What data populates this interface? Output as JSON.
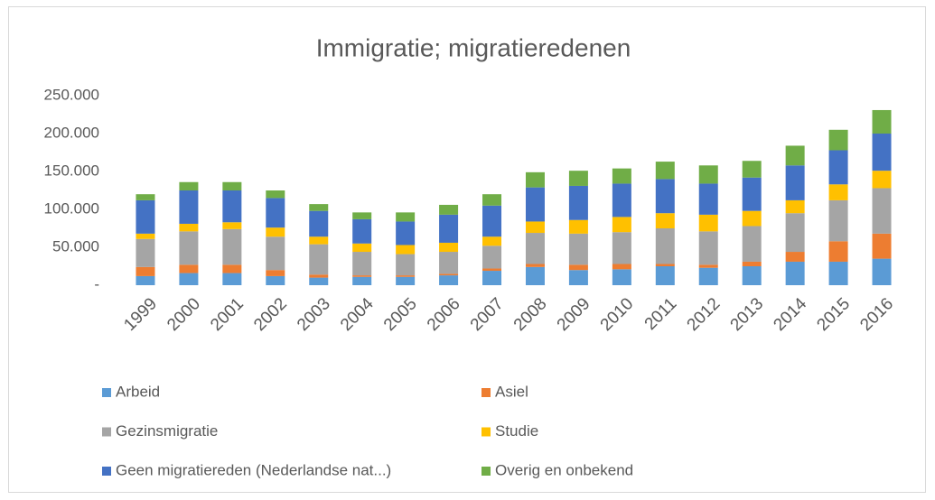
{
  "chart_data": {
    "type": "stacked_bar",
    "title": "Immigratie; migratieredenen",
    "categories": [
      "1999",
      "2000",
      "2001",
      "2002",
      "2003",
      "2004",
      "2005",
      "2006",
      "2007",
      "2008",
      "2009",
      "2010",
      "2011",
      "2012",
      "2013",
      "2014",
      "2015",
      "2016"
    ],
    "series": [
      {
        "name": "Arbeid",
        "color": "#5b9bd5",
        "values": [
          12000,
          16000,
          16000,
          12000,
          10000,
          11000,
          11000,
          13000,
          19000,
          24000,
          20000,
          21000,
          25000,
          23000,
          25000,
          31000,
          31000,
          35000
        ]
      },
      {
        "name": "Asiel",
        "color": "#ed7d31",
        "values": [
          12000,
          11000,
          11000,
          8000,
          4000,
          2000,
          2000,
          2000,
          3000,
          4000,
          7000,
          7000,
          3000,
          4000,
          6000,
          13000,
          27000,
          33000
        ]
      },
      {
        "name": "Gezinsmigratie",
        "color": "#a5a5a5",
        "values": [
          37000,
          44000,
          47000,
          44000,
          40000,
          31000,
          28000,
          29000,
          30000,
          41000,
          41000,
          42000,
          47000,
          44000,
          47000,
          51000,
          54000,
          60000
        ]
      },
      {
        "name": "Studie",
        "color": "#ffc000",
        "values": [
          7000,
          10000,
          9000,
          12000,
          10000,
          11000,
          12000,
          12000,
          12000,
          15000,
          18000,
          20000,
          20000,
          22000,
          20000,
          17000,
          21000,
          23000
        ]
      },
      {
        "name": "Geen migratiereden (Nederlandse nat...)",
        "color": "#4472c4",
        "values": [
          44000,
          44000,
          42000,
          39000,
          34000,
          32000,
          31000,
          37000,
          41000,
          45000,
          45000,
          44000,
          45000,
          41000,
          44000,
          46000,
          45000,
          49000
        ]
      },
      {
        "name": "Overig en onbekend",
        "color": "#70ad47",
        "values": [
          8000,
          11000,
          11000,
          10000,
          9000,
          9000,
          12000,
          13000,
          15000,
          20000,
          20000,
          20000,
          23000,
          24000,
          22000,
          26000,
          27000,
          31000
        ]
      }
    ],
    "ylim": [
      0,
      250000
    ],
    "yticks": [
      {
        "value": 0,
        "label": "-"
      },
      {
        "value": 50000,
        "label": "50.000"
      },
      {
        "value": 100000,
        "label": "100.000"
      },
      {
        "value": 150000,
        "label": "150.000"
      },
      {
        "value": 200000,
        "label": "200.000"
      },
      {
        "value": 250000,
        "label": "250.000"
      }
    ],
    "grid": false
  }
}
